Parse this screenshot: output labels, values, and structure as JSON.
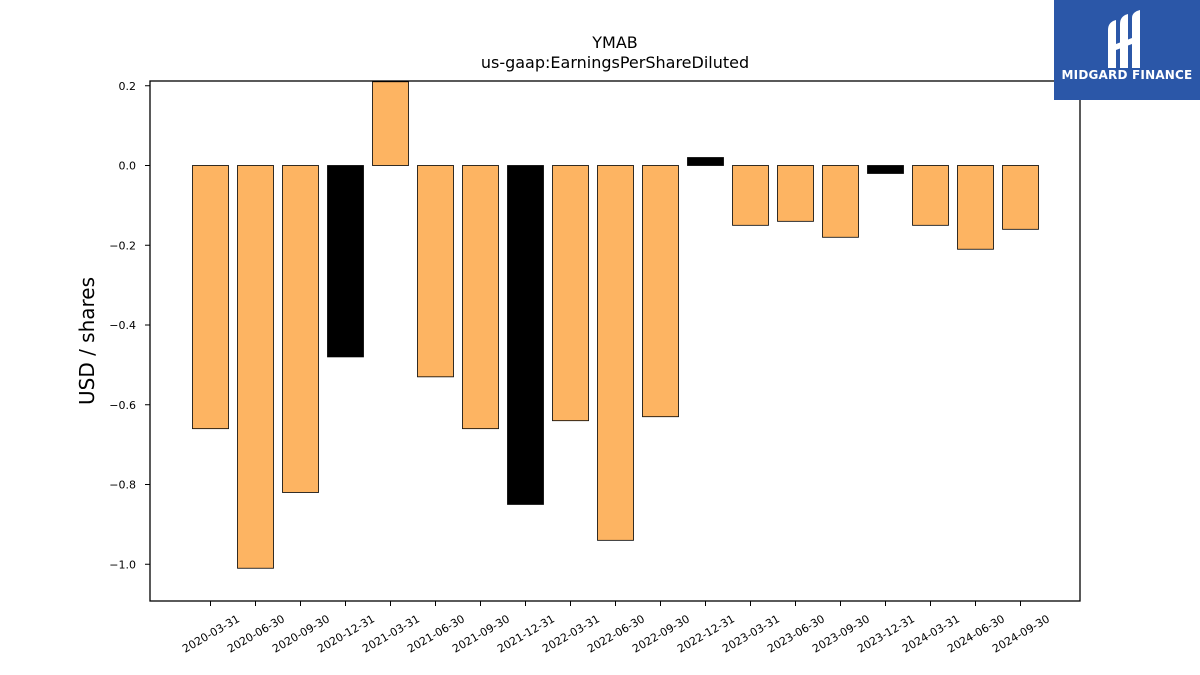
{
  "chart_data": {
    "type": "bar",
    "title": "YMAB",
    "subtitle": "us-gaap:EarningsPerShareDiluted",
    "xlabel": "",
    "ylabel": "USD / shares",
    "ylim": [
      -1.09,
      0.21
    ],
    "yticks": [
      0.2,
      0.0,
      -0.2,
      -0.4,
      -0.6,
      -0.8,
      -1.0
    ],
    "ytick_labels": [
      "0.2",
      "0.0",
      "−0.2",
      "−0.4",
      "−0.6",
      "−0.8",
      "−1.0"
    ],
    "grid": false,
    "legend": "none",
    "categories": [
      "2020-03-31",
      "2020-06-30",
      "2020-09-30",
      "2020-12-31",
      "2021-03-31",
      "2021-06-30",
      "2021-09-30",
      "2021-12-31",
      "2022-03-31",
      "2022-06-30",
      "2022-09-30",
      "2022-12-31",
      "2023-03-31",
      "2023-06-30",
      "2023-09-30",
      "2023-12-31",
      "2024-03-31",
      "2024-06-30",
      "2024-09-30"
    ],
    "values": [
      -0.66,
      -1.01,
      -0.82,
      -0.48,
      0.21,
      -0.53,
      -0.66,
      -0.85,
      -0.64,
      -0.94,
      -0.63,
      0.02,
      -0.15,
      -0.14,
      -0.18,
      -0.02,
      -0.15,
      -0.21,
      -0.16
    ],
    "bar_colors": [
      "#fdb462",
      "#fdb462",
      "#fdb462",
      "#000000",
      "#fdb462",
      "#fdb462",
      "#fdb462",
      "#000000",
      "#fdb462",
      "#fdb462",
      "#fdb462",
      "#000000",
      "#fdb462",
      "#fdb462",
      "#fdb462",
      "#000000",
      "#fdb462",
      "#fdb462",
      "#fdb462"
    ]
  },
  "logo": {
    "text": "MIDGARD FINANCE",
    "background_color": "#2b57a8",
    "icon": "midgard-logo-mark"
  }
}
